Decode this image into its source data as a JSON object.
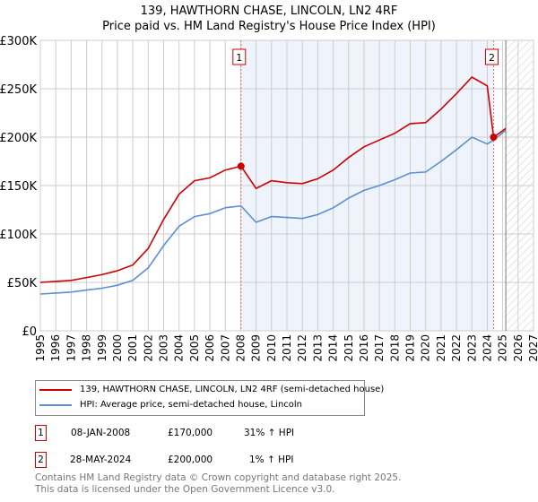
{
  "chart_data": {
    "type": "line",
    "title": "139, HAWTHORN CHASE, LINCOLN, LN2 4RF",
    "subtitle": "Price paid vs. HM Land Registry's House Price Index (HPI)",
    "xlim": [
      1995,
      2027
    ],
    "ylim": [
      0,
      300000
    ],
    "x_ticks": [
      "1995",
      "1996",
      "1997",
      "1998",
      "1999",
      "2000",
      "2001",
      "2002",
      "2003",
      "2004",
      "2005",
      "2006",
      "2007",
      "2008",
      "2009",
      "2010",
      "2011",
      "2012",
      "2013",
      "2014",
      "2015",
      "2016",
      "2017",
      "2018",
      "2019",
      "2020",
      "2021",
      "2022",
      "2023",
      "2024",
      "2025",
      "2026",
      "2027"
    ],
    "y_ticks": [
      {
        "v": 0,
        "label": "£0"
      },
      {
        "v": 50000,
        "label": "£50K"
      },
      {
        "v": 100000,
        "label": "£100K"
      },
      {
        "v": 150000,
        "label": "£150K"
      },
      {
        "v": 200000,
        "label": "£200K"
      },
      {
        "v": 250000,
        "label": "£250K"
      },
      {
        "v": 300000,
        "label": "£300K"
      }
    ],
    "grid": true,
    "x": [
      1995,
      1996,
      1997,
      1998,
      1999,
      2000,
      2001,
      2002,
      2003,
      2004,
      2005,
      2006,
      2007,
      2008.02,
      2009,
      2010,
      2011,
      2012,
      2013,
      2014,
      2015,
      2016,
      2017,
      2018,
      2019,
      2020,
      2021,
      2022,
      2023,
      2024,
      2024.41,
      2025.2
    ],
    "series": [
      {
        "name": "139, HAWTHORN CHASE, LINCOLN, LN2 4RF (semi-detached house)",
        "color": "#cc0000",
        "values": [
          50000,
          51000,
          52000,
          55000,
          58000,
          62000,
          68000,
          85000,
          115000,
          141000,
          155000,
          158000,
          166000,
          170000,
          147000,
          155000,
          153000,
          152000,
          157000,
          166000,
          179000,
          190000,
          197000,
          204000,
          214000,
          215000,
          229000,
          245000,
          262000,
          253000,
          200000,
          209000
        ]
      },
      {
        "name": "HPI: Average price, semi-detached house, Lincoln",
        "color": "#5b8fd4",
        "values": [
          38000,
          39000,
          40000,
          42000,
          44000,
          47000,
          52000,
          65000,
          88000,
          108000,
          118000,
          121000,
          127000,
          129000,
          112000,
          118000,
          117000,
          116000,
          120000,
          127000,
          137000,
          145000,
          150000,
          156000,
          163000,
          164000,
          175000,
          187000,
          200000,
          193000,
          197000,
          207000
        ]
      }
    ],
    "sales": [
      {
        "label": "1",
        "x": 2008.02,
        "y": 170000
      },
      {
        "label": "2",
        "x": 2024.41,
        "y": 200000
      }
    ],
    "forecast_start": 2025.2
  },
  "transactions": [
    {
      "n": "1",
      "date": "08-JAN-2008",
      "price": "£170,000",
      "hpi": "31% ↑ HPI"
    },
    {
      "n": "2",
      "date": "28-MAY-2024",
      "price": "£200,000",
      "hpi": "1% ↑ HPI"
    }
  ],
  "footer": {
    "line1": "Contains HM Land Registry data © Crown copyright and database right 2025.",
    "line2": "This data is licensed under the Open Government Licence v3.0."
  }
}
